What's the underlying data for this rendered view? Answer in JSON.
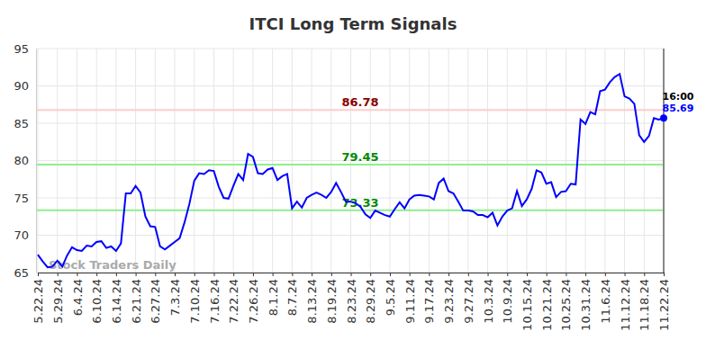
{
  "chart_data": {
    "type": "line",
    "title": "ITCI Long Term Signals",
    "categories": [
      "5.22.24",
      null,
      null,
      null,
      "5.29.24",
      null,
      null,
      null,
      "6.4.24",
      null,
      null,
      null,
      "6.10.24",
      null,
      null,
      null,
      "6.14.24",
      null,
      null,
      null,
      "6.21.24",
      null,
      null,
      null,
      "6.27.24",
      null,
      null,
      null,
      "7.3.24",
      null,
      null,
      null,
      "7.10.24",
      null,
      null,
      null,
      "7.16.24",
      null,
      null,
      null,
      "7.22.24",
      null,
      null,
      null,
      "7.26.24",
      null,
      null,
      null,
      "8.1.24",
      null,
      null,
      null,
      "8.7.24",
      null,
      null,
      null,
      "8.13.24",
      null,
      null,
      null,
      "8.19.24",
      null,
      null,
      null,
      "8.23.24",
      null,
      null,
      null,
      "8.29.24",
      null,
      null,
      null,
      "9.5.24",
      null,
      null,
      null,
      "9.11.24",
      null,
      null,
      null,
      "9.17.24",
      null,
      null,
      null,
      "9.23.24",
      null,
      null,
      null,
      "9.27.24",
      null,
      null,
      null,
      "10.3.24",
      null,
      null,
      null,
      "10.9.24",
      null,
      null,
      null,
      "10.15.24",
      null,
      null,
      null,
      "10.21.24",
      null,
      null,
      null,
      "10.25.24",
      null,
      null,
      null,
      "10.31.24",
      null,
      null,
      null,
      "11.6.24",
      null,
      null,
      null,
      "11.12.24",
      null,
      null,
      null,
      "11.18.24",
      null,
      null,
      null,
      "11.22.24"
    ],
    "values": [
      67.4,
      66.5,
      65.7,
      65.8,
      66.6,
      65.8,
      67.3,
      68.4,
      68.0,
      67.9,
      68.6,
      68.5,
      69.1,
      69.2,
      68.3,
      68.5,
      67.9,
      68.9,
      75.6,
      75.6,
      76.6,
      75.7,
      72.5,
      71.2,
      71.1,
      68.5,
      68.1,
      68.6,
      69.1,
      69.6,
      71.7,
      74.2,
      77.3,
      78.3,
      78.2,
      78.7,
      78.6,
      76.5,
      75.0,
      74.9,
      76.6,
      78.2,
      77.4,
      80.9,
      80.5,
      78.3,
      78.2,
      78.8,
      79.0,
      77.4,
      77.9,
      78.2,
      73.6,
      74.5,
      73.7,
      75.0,
      75.4,
      75.7,
      75.4,
      75.0,
      75.8,
      77.0,
      75.8,
      74.5,
      74.5,
      74.3,
      73.8,
      72.8,
      72.3,
      73.3,
      73.0,
      72.7,
      72.5,
      73.5,
      74.4,
      73.6,
      74.8,
      75.3,
      75.4,
      75.3,
      75.2,
      74.8,
      77.0,
      77.6,
      75.9,
      75.6,
      74.5,
      73.3,
      73.3,
      73.2,
      72.7,
      72.7,
      72.4,
      73.0,
      71.3,
      72.5,
      73.3,
      73.6,
      75.9,
      73.9,
      74.8,
      76.2,
      78.7,
      78.4,
      76.9,
      77.1,
      75.1,
      75.8,
      75.9,
      76.9,
      76.8,
      85.5,
      84.9,
      86.5,
      86.2,
      89.3,
      89.5,
      90.5,
      91.2,
      91.6,
      88.6,
      88.3,
      87.6,
      83.4,
      82.5,
      83.3,
      85.7,
      85.5,
      85.69
    ],
    "color": "#0000ff",
    "ylim": [
      65,
      95
    ],
    "yticks": [
      65,
      70,
      75,
      80,
      85,
      90,
      95
    ],
    "grid": true,
    "hlines": [
      {
        "value": 86.78,
        "color": "#ffcccc"
      },
      {
        "value": 79.45,
        "color": "#90ee90"
      },
      {
        "value": 73.33,
        "color": "#90ee90"
      }
    ],
    "last_time": "16:00",
    "watermark": "Stock Traders Daily"
  }
}
